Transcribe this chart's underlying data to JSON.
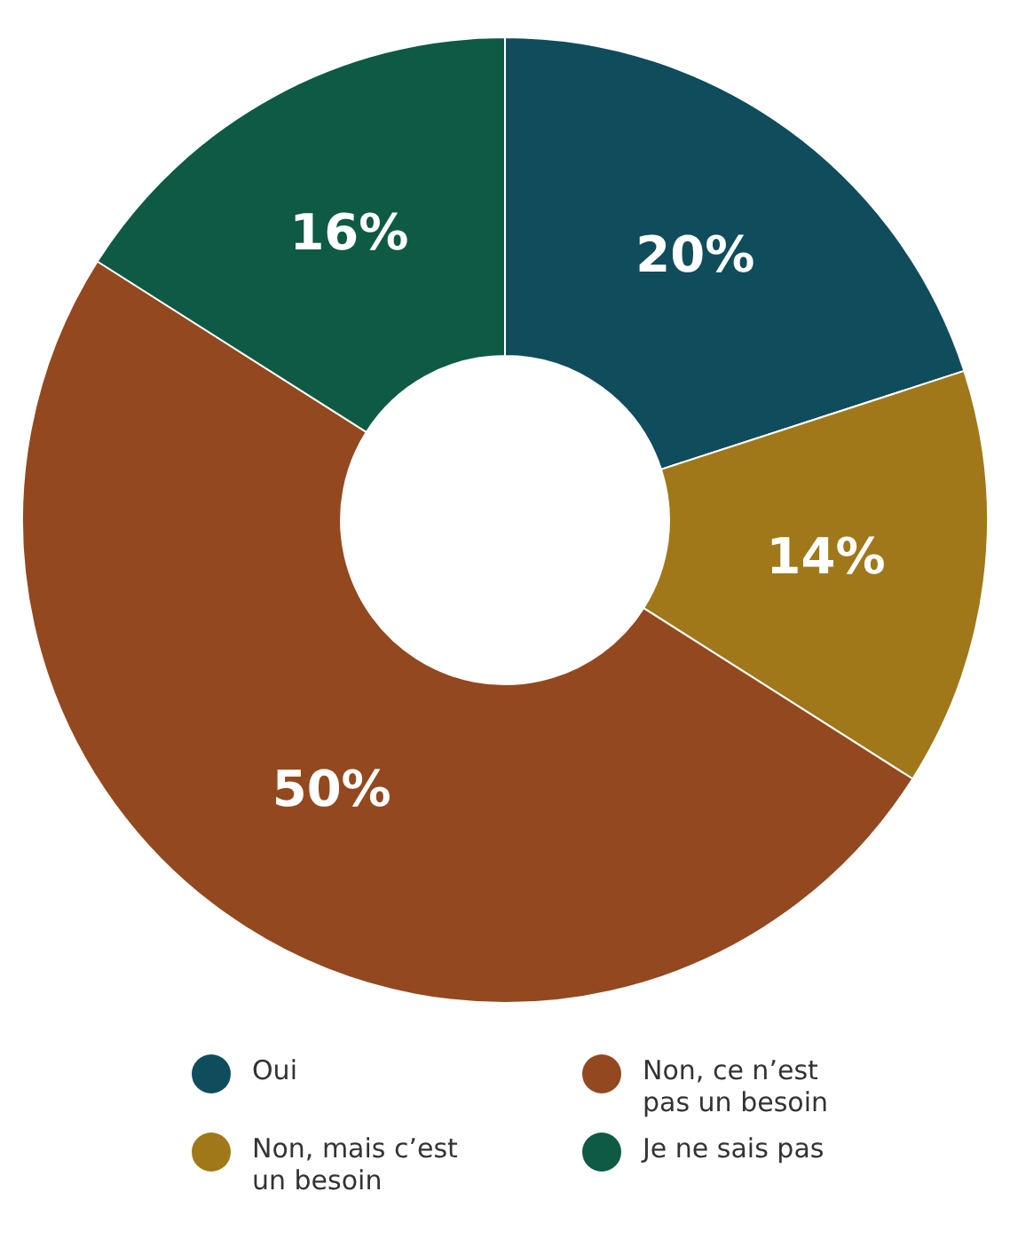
{
  "chart_data": {
    "type": "donut",
    "categories": [
      "Oui",
      "Non, mais c’est un besoin",
      "Non, ce n’est pas un besoin",
      "Je ne sais pas"
    ],
    "values": [
      20,
      14,
      50,
      16
    ],
    "colors": [
      "#0f4c5c",
      "#a0781a",
      "#93481f",
      "#0e5a44"
    ],
    "value_labels": [
      "20%",
      "14%",
      "50%",
      "16%"
    ],
    "legend": "bottom"
  }
}
